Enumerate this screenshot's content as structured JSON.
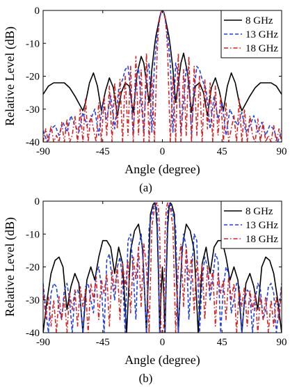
{
  "figure": {
    "panels": [
      {
        "caption": "(a)"
      },
      {
        "caption": "(b)"
      }
    ]
  },
  "chart_data": [
    {
      "type": "line",
      "caption": "(a)",
      "xlabel": "Angle (degree)",
      "ylabel": "Relative Level (dB)",
      "xlim": [
        -90,
        90
      ],
      "ylim": [
        -40,
        0
      ],
      "xticks": [
        "-90",
        "-45",
        "0",
        "45",
        "90"
      ],
      "yticks": [
        "0",
        "-10",
        "-20",
        "-30",
        "-40"
      ],
      "grid": false,
      "legend_position": "top-right",
      "series": [
        {
          "name": "8 GHz",
          "color": "#000000",
          "style": "solid",
          "x": [
            -90,
            -86,
            -82,
            -78,
            -74,
            -70,
            -66,
            -62,
            -60,
            -58,
            -55,
            -52,
            -49,
            -46,
            -43,
            -40,
            -37,
            -34,
            -31,
            -28,
            -25,
            -22,
            -19,
            -16,
            -14,
            -12,
            -10,
            -8,
            -6,
            -5,
            -4,
            -3,
            -2,
            -1,
            0,
            1,
            2,
            3,
            4,
            5,
            6,
            8,
            10,
            12,
            14,
            16,
            19,
            22,
            25,
            28,
            31,
            34,
            37,
            40,
            43,
            46,
            49,
            52,
            55,
            58,
            60,
            62,
            66,
            70,
            74,
            78,
            82,
            86,
            90
          ],
          "y": [
            -25.5,
            -23,
            -22,
            -22,
            -22,
            -23.5,
            -26,
            -29,
            -30.5,
            -28,
            -22,
            -19,
            -23,
            -30.5,
            -24.5,
            -20.5,
            -23.5,
            -32,
            -25,
            -22,
            -23,
            -31,
            -19,
            -14,
            -16,
            -22,
            -28,
            -18,
            -11,
            -8,
            -6,
            -4,
            -2,
            -0.5,
            0,
            -0.5,
            -2,
            -4,
            -6,
            -8,
            -11,
            -18,
            -28,
            -22,
            -16,
            -13,
            -19,
            -31,
            -23,
            -22,
            -25,
            -32,
            -23.5,
            -20.5,
            -24.5,
            -30.5,
            -23,
            -19,
            -22,
            -28,
            -30.5,
            -29,
            -26,
            -23.5,
            -22,
            -22,
            -22,
            -23,
            -25.5
          ]
        },
        {
          "name": "13 GHz",
          "color": "#1f3fe6",
          "style": "dashed",
          "x": [
            -90,
            -87,
            -84,
            -81,
            -78,
            -75,
            -72,
            -69,
            -66,
            -63,
            -60,
            -57,
            -54,
            -51,
            -48,
            -45,
            -42,
            -39,
            -36,
            -33,
            -30,
            -28,
            -26,
            -24,
            -22,
            -20,
            -18,
            -16,
            -14,
            -12,
            -10,
            -8,
            -6,
            -4,
            -3,
            -2,
            -1,
            0,
            1,
            2,
            3,
            4,
            6,
            8,
            10,
            12,
            14,
            16,
            18,
            20,
            22,
            24,
            26,
            28,
            30,
            33,
            36,
            39,
            42,
            45,
            48,
            51,
            54,
            57,
            60,
            63,
            66,
            69,
            72,
            75,
            78,
            81,
            84,
            87,
            90
          ],
          "y": [
            -36.5,
            -40,
            -36,
            -35,
            -38,
            -34,
            -37,
            -32,
            -35,
            -37,
            -31,
            -35,
            -33,
            -30,
            -38,
            -28,
            -33,
            -26,
            -36,
            -24,
            -21,
            -18,
            -17,
            -24,
            -38,
            -21,
            -17.5,
            -28,
            -37,
            -20,
            -16,
            -37,
            -16,
            -8,
            -5,
            -2.5,
            -0.5,
            0,
            -0.5,
            -2.5,
            -5,
            -8,
            -16,
            -37,
            -16,
            -20,
            -37,
            -28,
            -17.5,
            -21,
            -38,
            -24,
            -17,
            -18,
            -21,
            -24,
            -36,
            -26,
            -33,
            -28,
            -38,
            -30,
            -33,
            -35,
            -31,
            -37,
            -35,
            -32,
            -37,
            -34,
            -38,
            -35,
            -36,
            -40,
            -36.5
          ]
        },
        {
          "name": "18 GHz",
          "color": "#d81e1e",
          "style": "dashdot",
          "x": [
            -90,
            -88,
            -86,
            -84,
            -82,
            -80,
            -78,
            -76,
            -74,
            -72,
            -70,
            -68,
            -66,
            -64,
            -62,
            -60,
            -58,
            -56,
            -54,
            -52,
            -50,
            -48,
            -46,
            -44,
            -42,
            -40,
            -38,
            -36,
            -34,
            -32,
            -30,
            -28,
            -26,
            -24,
            -22,
            -20,
            -18,
            -16,
            -14,
            -12,
            -10,
            -8,
            -6,
            -4,
            -3,
            -2,
            -1,
            0,
            1,
            2,
            3,
            4,
            6,
            8,
            10,
            12,
            14,
            16,
            18,
            20,
            22,
            24,
            26,
            28,
            30,
            32,
            34,
            36,
            38,
            40,
            42,
            44,
            46,
            48,
            50,
            52,
            54,
            56,
            58,
            60,
            62,
            64,
            66,
            68,
            70,
            72,
            74,
            76,
            78,
            80,
            82,
            84,
            86,
            88,
            90
          ],
          "y": [
            -40,
            -36,
            -40,
            -35,
            -40,
            -38,
            -40,
            -34,
            -40,
            -33,
            -40,
            -38,
            -32,
            -40,
            -30,
            -40,
            -27,
            -40,
            -32,
            -36,
            -40,
            -28,
            -40,
            -26,
            -38,
            -23,
            -40,
            -22,
            -36,
            -21,
            -40,
            -20,
            -38,
            -17,
            -40,
            -14,
            -38,
            -18,
            -40,
            -13,
            -40,
            -20,
            -40,
            -13,
            -6,
            -2,
            -0.5,
            0,
            -0.5,
            -2,
            -6,
            -13,
            -40,
            -20,
            -40,
            -13,
            -40,
            -18,
            -38,
            -14,
            -40,
            -17,
            -38,
            -20,
            -40,
            -21,
            -36,
            -22,
            -40,
            -23,
            -38,
            -26,
            -40,
            -28,
            -40,
            -36,
            -32,
            -40,
            -27,
            -40,
            -30,
            -40,
            -32,
            -38,
            -40,
            -33,
            -40,
            -34,
            -40,
            -38,
            -40,
            -35,
            -40,
            -36,
            -40
          ]
        }
      ]
    },
    {
      "type": "line",
      "caption": "(b)",
      "xlabel": "Angle (degree)",
      "ylabel": "Relative Level (dB)",
      "xlim": [
        -90,
        90
      ],
      "ylim": [
        -40,
        0
      ],
      "xticks": [
        "-90",
        "-45",
        "0",
        "45",
        "90"
      ],
      "yticks": [
        "0",
        "-10",
        "-20",
        "-30",
        "-40"
      ],
      "grid": false,
      "legend_position": "top-right",
      "series": [
        {
          "name": "8 GHz",
          "color": "#000000",
          "style": "solid",
          "x": [
            -90,
            -87,
            -84,
            -81,
            -78,
            -75,
            -72,
            -69,
            -66,
            -63,
            -60,
            -57,
            -54,
            -51,
            -48,
            -45,
            -42,
            -39,
            -36,
            -33,
            -30,
            -27,
            -24,
            -21,
            -18,
            -15,
            -12,
            -9,
            -7,
            -6,
            -5,
            -4,
            -3,
            -2,
            -1,
            0,
            1,
            2,
            3,
            4,
            5,
            6,
            7,
            9,
            12,
            15,
            18,
            21,
            24,
            27,
            30,
            33,
            36,
            39,
            42,
            45,
            48,
            51,
            54,
            57,
            60,
            63,
            66,
            69,
            72,
            75,
            78,
            81,
            84,
            87,
            90
          ],
          "y": [
            -40,
            -30,
            -22,
            -18,
            -17,
            -20,
            -33,
            -26,
            -22,
            -25,
            -40,
            -24,
            -20,
            -24,
            -17,
            -12,
            -12,
            -14,
            -22,
            -14,
            -19,
            -40,
            -15,
            -9,
            -7,
            -14,
            -40,
            -4,
            -1,
            -0.5,
            -2,
            -8,
            -22,
            -40,
            -28,
            -20,
            -28,
            -40,
            -22,
            -8,
            -2,
            -0.5,
            -1,
            -4,
            -40,
            -14,
            -7,
            -9,
            -15,
            -40,
            -19,
            -14,
            -22,
            -14,
            -12,
            -12,
            -17,
            -24,
            -20,
            -24,
            -40,
            -25,
            -22,
            -26,
            -33,
            -20,
            -17,
            -18,
            -22,
            -30,
            -40
          ]
        },
        {
          "name": "13 GHz",
          "color": "#1f3fe6",
          "style": "dashed",
          "x": [
            -90,
            -88,
            -86,
            -84,
            -82,
            -80,
            -78,
            -76,
            -74,
            -72,
            -70,
            -68,
            -66,
            -64,
            -62,
            -60,
            -58,
            -56,
            -54,
            -52,
            -50,
            -48,
            -46,
            -44,
            -42,
            -40,
            -38,
            -36,
            -34,
            -32,
            -30,
            -28,
            -26,
            -24,
            -22,
            -20,
            -18,
            -16,
            -14,
            -12,
            -10,
            -8,
            -6,
            -5,
            -4,
            -3,
            -2,
            -1,
            0,
            1,
            2,
            3,
            4,
            5,
            6,
            8,
            10,
            12,
            14,
            16,
            18,
            20,
            22,
            24,
            26,
            28,
            30,
            32,
            34,
            36,
            38,
            40,
            42,
            44,
            46,
            48,
            50,
            52,
            54,
            56,
            58,
            60,
            62,
            64,
            66,
            68,
            70,
            72,
            74,
            76,
            78,
            80,
            82,
            84,
            86,
            88,
            90
          ],
          "y": [
            -25,
            -33,
            -40,
            -28,
            -25,
            -26,
            -33,
            -36,
            -27,
            -25,
            -30,
            -40,
            -28,
            -27,
            -30,
            -40,
            -26,
            -25,
            -30,
            -34,
            -22,
            -20,
            -26,
            -40,
            -18,
            -16,
            -24,
            -30,
            -20,
            -17,
            -24,
            -40,
            -12,
            -10,
            -22,
            -36,
            -14,
            -10,
            -22,
            -40,
            -8,
            -4,
            -1,
            -0.5,
            -3,
            -18,
            -40,
            -40,
            -40,
            -40,
            -40,
            -18,
            -3,
            -0.5,
            -1,
            -4,
            -8,
            -40,
            -22,
            -10,
            -14,
            -36,
            -22,
            -10,
            -12,
            -40,
            -24,
            -17,
            -20,
            -30,
            -24,
            -16,
            -18,
            -40,
            -26,
            -20,
            -22,
            -34,
            -30,
            -25,
            -26,
            -40,
            -30,
            -27,
            -28,
            -40,
            -30,
            -25,
            -27,
            -36,
            -33,
            -26,
            -25,
            -28,
            -40,
            -33,
            -25
          ]
        },
        {
          "name": "18 GHz",
          "color": "#d81e1e",
          "style": "dashdot",
          "x": [
            -90,
            -88,
            -86,
            -84,
            -82,
            -80,
            -78,
            -76,
            -74,
            -72,
            -70,
            -68,
            -66,
            -64,
            -62,
            -60,
            -58,
            -56,
            -54,
            -52,
            -50,
            -48,
            -46,
            -44,
            -42,
            -40,
            -38,
            -36,
            -34,
            -32,
            -30,
            -28,
            -26,
            -24,
            -22,
            -20,
            -18,
            -16,
            -14,
            -12,
            -10,
            -8,
            -6,
            -4,
            -3,
            -2,
            -1,
            0,
            1,
            2,
            3,
            4,
            6,
            8,
            10,
            12,
            14,
            16,
            18,
            20,
            22,
            24,
            26,
            28,
            30,
            32,
            34,
            36,
            38,
            40,
            42,
            44,
            46,
            48,
            50,
            52,
            54,
            56,
            58,
            60,
            62,
            64,
            66,
            68,
            70,
            72,
            74,
            76,
            78,
            80,
            82,
            84,
            86,
            88,
            90
          ],
          "y": [
            -26,
            -36,
            -29,
            -38,
            -30,
            -40,
            -29,
            -36,
            -29,
            -40,
            -28,
            -33,
            -27,
            -38,
            -26,
            -32,
            -27,
            -40,
            -25,
            -30,
            -23,
            -36,
            -24,
            -28,
            -22,
            -38,
            -21,
            -27,
            -20,
            -36,
            -19,
            -26,
            -18,
            -34,
            -17,
            -24,
            -14,
            -32,
            -13,
            -20,
            -40,
            -8,
            -2,
            -0.5,
            -2,
            -10,
            -40,
            -40,
            -40,
            -10,
            -2,
            -0.5,
            -2,
            -8,
            -40,
            -20,
            -13,
            -32,
            -14,
            -24,
            -17,
            -34,
            -18,
            -26,
            -19,
            -36,
            -20,
            -27,
            -21,
            -38,
            -22,
            -28,
            -24,
            -36,
            -23,
            -30,
            -25,
            -40,
            -27,
            -32,
            -26,
            -38,
            -27,
            -33,
            -28,
            -40,
            -29,
            -36,
            -29,
            -40,
            -30,
            -38,
            -29,
            -36,
            -26
          ]
        }
      ]
    }
  ]
}
